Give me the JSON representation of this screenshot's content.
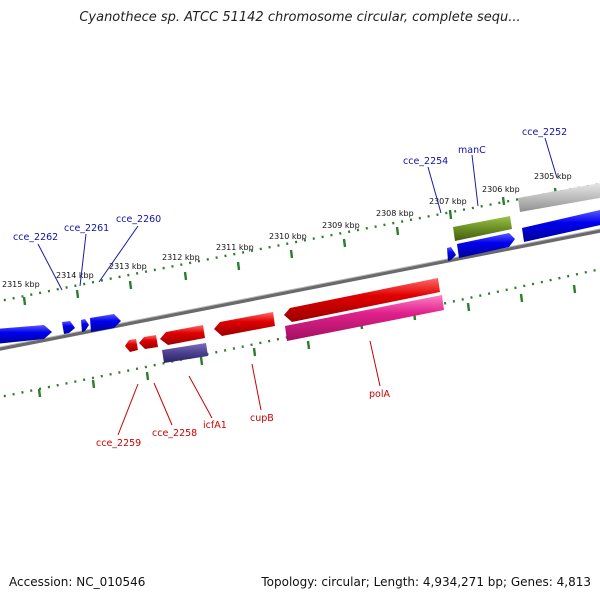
{
  "title": "Cyanothece sp. ATCC 51142 chromosome circular, complete sequ...",
  "footer": {
    "accession": "Accession: NC_010546",
    "summary": "Topology: circular; Length: 4,934,271 bp; Genes: 4,813"
  },
  "colors": {
    "tick": "#2e7d2e",
    "backbone": "#7a7a7a",
    "forward_gene": "#0000ee",
    "reverse_gene": "#e00000",
    "pink_gene": "#e0208a",
    "olive_gene": "#6b8e23",
    "navy_gene": "#4b3f8f",
    "gray_gene": "#b9b9b9",
    "label_blue": "#1010b0",
    "label_red": "#cc0000"
  },
  "scale_labels": [
    "2305 kbp",
    "2306 kbp",
    "2307 kbp",
    "2308 kbp",
    "2309 kbp",
    "2310 kbp",
    "2311 kbp",
    "2312 kbp",
    "2313 kbp",
    "2314 kbp",
    "2315 kbp"
  ],
  "labels_top": [
    "cce_2252",
    "manC",
    "cce_2254",
    "cce_2260",
    "cce_2261",
    "cce_2262"
  ],
  "labels_bottom": [
    "polA",
    "cupB",
    "icfA1",
    "cce_2258",
    "cce_2259"
  ]
}
